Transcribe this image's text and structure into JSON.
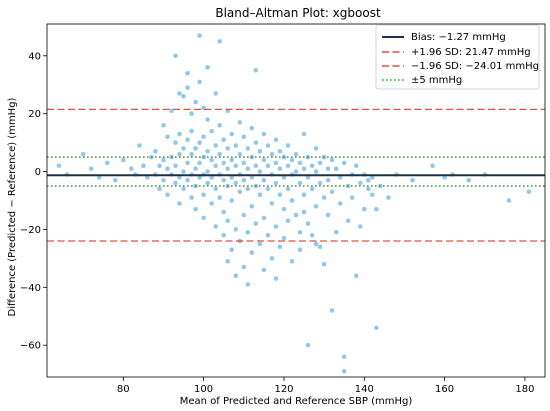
{
  "chart_data": {
    "type": "scatter",
    "title": "Bland–Altman Plot: xgboost",
    "xlabel": "Mean of Predicted and Reference SBP (mmHg)",
    "ylabel": "Difference (Predicted − Reference) (mmHg)",
    "xlim": [
      61,
      185
    ],
    "ylim": [
      -71,
      51
    ],
    "x_ticks": [
      80,
      100,
      120,
      140,
      160,
      180
    ],
    "y_ticks": [
      -60,
      -40,
      -20,
      0,
      20,
      40
    ],
    "grid": false,
    "legend_position": "top-right",
    "colors": {
      "points": "#3b9ad8",
      "bias": "#1f3049",
      "limits": "#e0503a",
      "tolerance": "#2ca02c"
    },
    "reference_lines": [
      {
        "label": "Bias: −1.27 mmHg",
        "value": -1.27,
        "style": "solid",
        "color": "#1f3049"
      },
      {
        "label": "+1.96 SD: 21.47 mmHg",
        "value": 21.47,
        "style": "dashed",
        "color": "#e0503a"
      },
      {
        "label": "−1.96 SD: −24.01 mmHg",
        "value": -24.01,
        "style": "dashed",
        "color": "#e0503a"
      },
      {
        "label": "±5 mmHg",
        "value": 5,
        "value_lower": -5,
        "style": "dotted",
        "color": "#2ca02c"
      }
    ],
    "points": [
      [
        64,
        2
      ],
      [
        66,
        -1
      ],
      [
        70,
        6
      ],
      [
        72,
        1
      ],
      [
        74,
        -2
      ],
      [
        76,
        3
      ],
      [
        78,
        -3
      ],
      [
        80,
        4
      ],
      [
        82,
        1
      ],
      [
        83,
        -1
      ],
      [
        84,
        9
      ],
      [
        85,
        2
      ],
      [
        86,
        -2
      ],
      [
        87,
        5
      ],
      [
        88,
        -1
      ],
      [
        88,
        7
      ],
      [
        89,
        2
      ],
      [
        89,
        -6
      ],
      [
        90,
        16
      ],
      [
        90,
        4
      ],
      [
        90,
        -3
      ],
      [
        91,
        12
      ],
      [
        91,
        1
      ],
      [
        91,
        -8
      ],
      [
        92,
        21
      ],
      [
        92,
        5
      ],
      [
        92,
        -1
      ],
      [
        93,
        40
      ],
      [
        93,
        10
      ],
      [
        93,
        2
      ],
      [
        93,
        -4
      ],
      [
        94,
        27
      ],
      [
        94,
        13
      ],
      [
        94,
        6
      ],
      [
        94,
        -2
      ],
      [
        94,
        -11
      ],
      [
        95,
        26
      ],
      [
        95,
        8
      ],
      [
        95,
        0
      ],
      [
        95,
        -6
      ],
      [
        96,
        29
      ],
      [
        96,
        34
      ],
      [
        96,
        11
      ],
      [
        96,
        3
      ],
      [
        96,
        -3
      ],
      [
        97,
        20
      ],
      [
        97,
        14
      ],
      [
        97,
        6
      ],
      [
        97,
        -1
      ],
      [
        97,
        -9
      ],
      [
        98,
        24
      ],
      [
        98,
        8
      ],
      [
        98,
        1
      ],
      [
        98,
        -5
      ],
      [
        98,
        -13
      ],
      [
        99,
        31
      ],
      [
        99,
        47
      ],
      [
        99,
        10
      ],
      [
        99,
        3
      ],
      [
        99,
        -2
      ],
      [
        100,
        22
      ],
      [
        100,
        12
      ],
      [
        100,
        5
      ],
      [
        100,
        -1
      ],
      [
        100,
        -8
      ],
      [
        100,
        -16
      ],
      [
        101,
        18
      ],
      [
        101,
        7
      ],
      [
        101,
        0
      ],
      [
        101,
        -4
      ],
      [
        101,
        36
      ],
      [
        102,
        14
      ],
      [
        102,
        4
      ],
      [
        102,
        -2
      ],
      [
        102,
        -11
      ],
      [
        103,
        27
      ],
      [
        103,
        9
      ],
      [
        103,
        2
      ],
      [
        103,
        -6
      ],
      [
        103,
        -19
      ],
      [
        104,
        45
      ],
      [
        104,
        16
      ],
      [
        104,
        6
      ],
      [
        104,
        -1
      ],
      [
        104,
        -9
      ],
      [
        105,
        11
      ],
      [
        105,
        3
      ],
      [
        105,
        -3
      ],
      [
        105,
        -14
      ],
      [
        105,
        -22
      ],
      [
        106,
        21
      ],
      [
        106,
        8
      ],
      [
        106,
        1
      ],
      [
        106,
        -5
      ],
      [
        106,
        -17
      ],
      [
        106,
        -31
      ],
      [
        107,
        13
      ],
      [
        107,
        4
      ],
      [
        107,
        -2
      ],
      [
        107,
        -10
      ],
      [
        107,
        -27
      ],
      [
        108,
        9
      ],
      [
        108,
        2
      ],
      [
        108,
        -4
      ],
      [
        108,
        -20
      ],
      [
        108,
        -36
      ],
      [
        109,
        17
      ],
      [
        109,
        6
      ],
      [
        109,
        -1
      ],
      [
        109,
        -7
      ],
      [
        109,
        -24
      ],
      [
        110,
        12
      ],
      [
        110,
        3
      ],
      [
        110,
        -3
      ],
      [
        110,
        -15
      ],
      [
        110,
        -33
      ],
      [
        111,
        8
      ],
      [
        111,
        1
      ],
      [
        111,
        -6
      ],
      [
        111,
        -21
      ],
      [
        111,
        -39
      ],
      [
        112,
        15
      ],
      [
        112,
        5
      ],
      [
        112,
        -2
      ],
      [
        112,
        -12
      ],
      [
        112,
        -28
      ],
      [
        113,
        35
      ],
      [
        113,
        10
      ],
      [
        113,
        2
      ],
      [
        113,
        -5
      ],
      [
        113,
        -18
      ],
      [
        114,
        7
      ],
      [
        114,
        0
      ],
      [
        114,
        -8
      ],
      [
        114,
        -25
      ],
      [
        115,
        13
      ],
      [
        115,
        4
      ],
      [
        115,
        -3
      ],
      [
        115,
        -16
      ],
      [
        115,
        -34
      ],
      [
        116,
        9
      ],
      [
        116,
        2
      ],
      [
        116,
        -6
      ],
      [
        116,
        -22
      ],
      [
        117,
        6
      ],
      [
        117,
        -1
      ],
      [
        117,
        -11
      ],
      [
        117,
        -30
      ],
      [
        118,
        11
      ],
      [
        118,
        3
      ],
      [
        118,
        -4
      ],
      [
        118,
        -19
      ],
      [
        118,
        -37
      ],
      [
        119,
        7
      ],
      [
        119,
        1
      ],
      [
        119,
        -8
      ],
      [
        119,
        -26
      ],
      [
        120,
        5
      ],
      [
        120,
        -2
      ],
      [
        120,
        -13
      ],
      [
        120,
        -23
      ],
      [
        121,
        9
      ],
      [
        121,
        2
      ],
      [
        121,
        -6
      ],
      [
        121,
        -17
      ],
      [
        122,
        4
      ],
      [
        122,
        -1
      ],
      [
        122,
        -10
      ],
      [
        122,
        -31
      ],
      [
        123,
        6
      ],
      [
        123,
        0
      ],
      [
        123,
        -15
      ],
      [
        124,
        3
      ],
      [
        124,
        -4
      ],
      [
        124,
        -21
      ],
      [
        124,
        -27
      ],
      [
        125,
        13
      ],
      [
        125,
        1
      ],
      [
        125,
        -8
      ],
      [
        125,
        -14
      ],
      [
        126,
        -60
      ],
      [
        126,
        5
      ],
      [
        126,
        -2
      ],
      [
        126,
        -18
      ],
      [
        127,
        2
      ],
      [
        127,
        -6
      ],
      [
        127,
        -22
      ],
      [
        128,
        8
      ],
      [
        128,
        0
      ],
      [
        128,
        -12
      ],
      [
        128,
        -25
      ],
      [
        129,
        3
      ],
      [
        129,
        -4
      ],
      [
        129,
        -26
      ],
      [
        130,
        5
      ],
      [
        130,
        -9
      ],
      [
        130,
        -32
      ],
      [
        131,
        1
      ],
      [
        131,
        -3
      ],
      [
        131,
        -15
      ],
      [
        132,
        -48
      ],
      [
        132,
        4
      ],
      [
        132,
        -7
      ],
      [
        133,
        1
      ],
      [
        133,
        -21
      ],
      [
        134,
        -2
      ],
      [
        134,
        -11
      ],
      [
        135,
        -64
      ],
      [
        135,
        -69
      ],
      [
        135,
        3
      ],
      [
        136,
        -5
      ],
      [
        136,
        -17
      ],
      [
        137,
        -1
      ],
      [
        137,
        -9
      ],
      [
        138,
        -36
      ],
      [
        138,
        2
      ],
      [
        139,
        -4
      ],
      [
        139,
        -19
      ],
      [
        140,
        -1
      ],
      [
        140,
        -13
      ],
      [
        141,
        -3
      ],
      [
        141,
        -6
      ],
      [
        142,
        -8
      ],
      [
        142,
        -2
      ],
      [
        143,
        -54
      ],
      [
        143,
        -13
      ],
      [
        144,
        -5
      ],
      [
        146,
        -9
      ],
      [
        148,
        -1
      ],
      [
        152,
        -3
      ],
      [
        157,
        2
      ],
      [
        160,
        -2
      ],
      [
        162,
        -1
      ],
      [
        166,
        -3
      ],
      [
        170,
        -1
      ],
      [
        176,
        -10
      ],
      [
        181,
        -7
      ]
    ]
  }
}
